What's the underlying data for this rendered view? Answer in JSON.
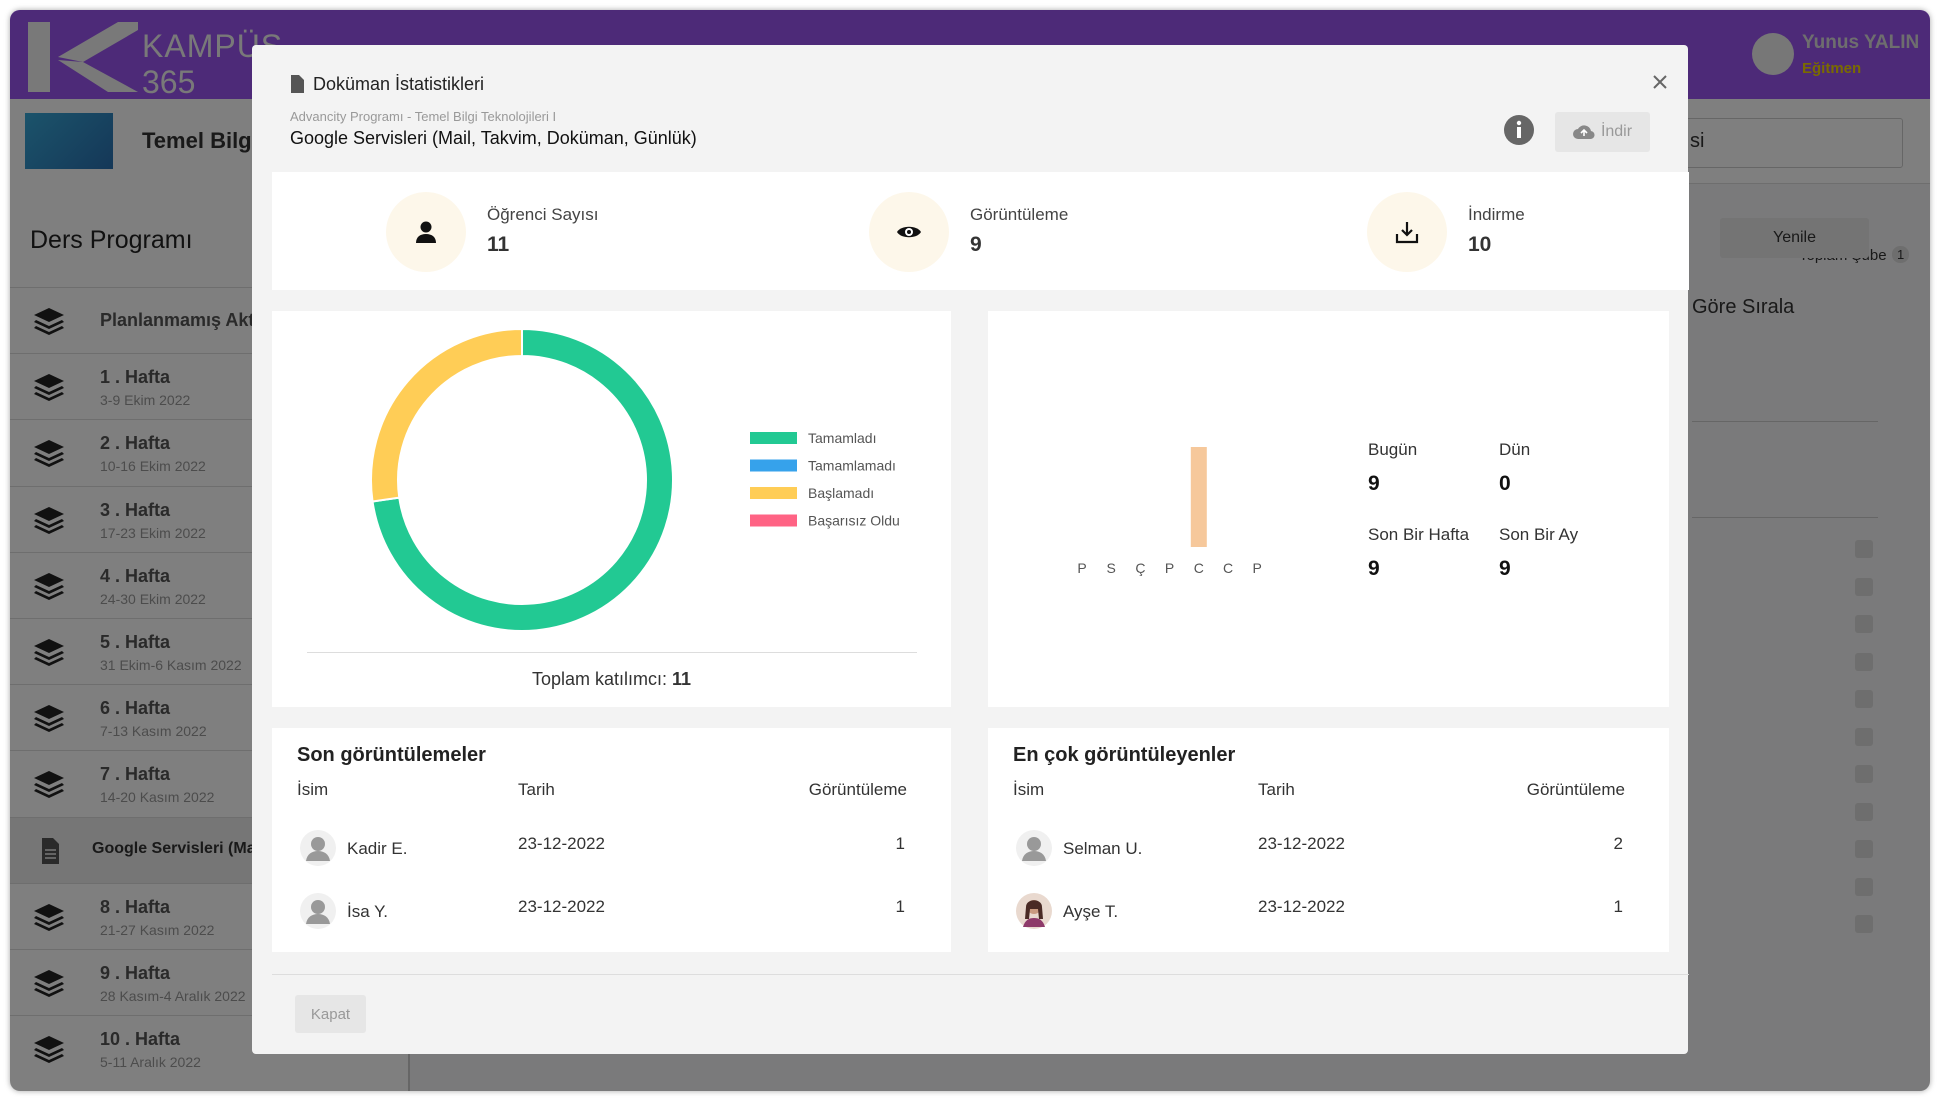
{
  "app": {
    "logo_text": [
      "KAMPÜS",
      "365"
    ],
    "user": {
      "name": "Yunus YALIN",
      "role": "Eğitmen"
    },
    "course_title": "Temel Bilgi",
    "sidebar": {
      "title": "Ders Programı",
      "items": [
        {
          "title": "Planlanmamış Akt"
        },
        {
          "title": "1 . Hafta",
          "dates": "3-9 Ekim 2022"
        },
        {
          "title": "2 . Hafta",
          "dates": "10-16 Ekim 2022"
        },
        {
          "title": "3 . Hafta",
          "dates": "17-23 Ekim 2022"
        },
        {
          "title": "4 . Hafta",
          "dates": "24-30 Ekim 2022"
        },
        {
          "title": "5 . Hafta",
          "dates": "31 Ekim-6 Kasım 2022"
        },
        {
          "title": "6 . Hafta",
          "dates": "7-13 Kasım 2022"
        },
        {
          "title": "7 . Hafta",
          "dates": "14-20 Kasım 2022"
        },
        {
          "title": "Google Servisleri (Ma",
          "kind": "document"
        },
        {
          "title": "8 . Hafta",
          "dates": "21-27 Kasım 2022"
        },
        {
          "title": "9 . Hafta",
          "dates": "28 Kasım-4 Aralık 2022"
        },
        {
          "title": "10 . Hafta",
          "dates": "5-11 Aralık 2022"
        }
      ]
    },
    "toolbar": {
      "select_text": "si",
      "total_label": "Toplam Şube",
      "total_count": 1,
      "refresh": "Yenile",
      "sort": "Göre Sırala"
    }
  },
  "modal": {
    "title": "Doküman İstatistikleri",
    "breadcrumb": "Advancity Programı - Temel Bilgi Teknolojileri I",
    "subtitle": "Google Servisleri (Mail, Takvim, Doküman, Günlük)",
    "download": "İndir",
    "stats": [
      {
        "label": "Öğrenci Sayısı",
        "value": 11,
        "icon": "user"
      },
      {
        "label": "Görüntüleme",
        "value": 9,
        "icon": "eye"
      },
      {
        "label": "İndirme",
        "value": 10,
        "icon": "download"
      }
    ],
    "total_label": "Toplam katılımcı:",
    "total_value": 11,
    "period_stats": [
      {
        "label": "Bugün",
        "value": 9
      },
      {
        "label": "Dün",
        "value": 0
      },
      {
        "label": "Son Bir Hafta",
        "value": 9
      },
      {
        "label": "Son Bir Ay",
        "value": 9
      }
    ],
    "recent": {
      "title": "Son görüntülemeler",
      "columns": [
        "İsim",
        "Tarih",
        "Görüntüleme"
      ],
      "rows": [
        [
          "Kadir E.",
          "23-12-2022",
          1
        ],
        [
          "İsa Y.",
          "23-12-2022",
          1
        ]
      ]
    },
    "top": {
      "title": "En çok görüntüleyenler",
      "columns": [
        "İsim",
        "Tarih",
        "Görüntüleme"
      ],
      "rows": [
        [
          "Selman U.",
          "23-12-2022",
          2
        ],
        [
          "Ayşe T.",
          "23-12-2022",
          1
        ]
      ]
    },
    "close": "Kapat"
  },
  "chart_data": [
    {
      "type": "doughnut",
      "categories": [
        "Tamamladı",
        "Tamamlamadı",
        "Başlamadı",
        "Başarısız Oldu"
      ],
      "values": [
        8,
        0,
        3,
        0
      ],
      "colors": [
        "#22c993",
        "#36a2eb",
        "#ffcd56",
        "#ff6384"
      ]
    },
    {
      "type": "bar",
      "categories": [
        "P",
        "S",
        "Ç",
        "P",
        "C",
        "C",
        "P"
      ],
      "values": [
        0,
        0,
        0,
        0,
        9,
        0,
        0
      ],
      "color": "#f6c89b"
    }
  ]
}
